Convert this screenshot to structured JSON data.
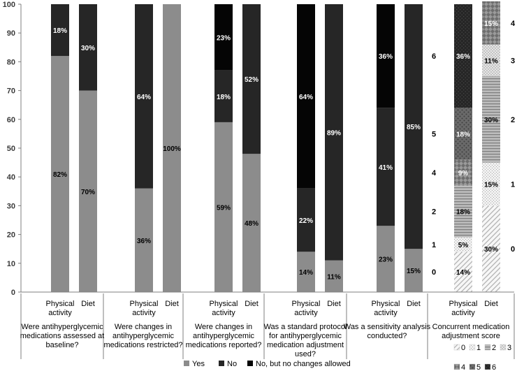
{
  "chart_data": {
    "type": "bar",
    "stacked": true,
    "ylim": [
      0,
      100
    ],
    "yticks": [
      0,
      10,
      20,
      30,
      40,
      50,
      60,
      70,
      80,
      90,
      100
    ],
    "grid": false,
    "legend_placement": "bottom",
    "colors": {
      "yes": "#8c8c8c",
      "no": "#262626",
      "no_changes": "#050505",
      "score_0": "#f2f2f2",
      "score_1": "#e6e6e6",
      "score_2": "#b3b3b3",
      "score_3": "#d9d9d9",
      "score_4": "#808080",
      "score_5": "#595959",
      "score_6": "#1a1a1a",
      "label_light": "#ffffff",
      "label_dark": "#000000"
    },
    "groups": [
      {
        "question": "Were antihyperglycemic medications assessed at baseline?",
        "bars": [
          {
            "category": "Physical activity",
            "segments": [
              {
                "series": "yes",
                "value": 82,
                "label": "82%"
              },
              {
                "series": "no",
                "value": 18,
                "label": "18%"
              }
            ]
          },
          {
            "category": "Diet",
            "segments": [
              {
                "series": "yes",
                "value": 70,
                "label": "70%"
              },
              {
                "series": "no",
                "value": 30,
                "label": "30%"
              }
            ]
          }
        ]
      },
      {
        "question": "Were changes in antihyperglycemic medications restricted?",
        "bars": [
          {
            "category": "Physical activity",
            "segments": [
              {
                "series": "yes",
                "value": 36,
                "label": "36%"
              },
              {
                "series": "no",
                "value": 64,
                "label": "64%"
              }
            ]
          },
          {
            "category": "Diet",
            "segments": [
              {
                "series": "yes",
                "value": 100,
                "label": "100%"
              }
            ]
          }
        ]
      },
      {
        "question": "Were changes in antihyperglycemic medications reported?",
        "bars": [
          {
            "category": "Physical activity",
            "segments": [
              {
                "series": "yes",
                "value": 59,
                "label": "59%"
              },
              {
                "series": "no",
                "value": 18,
                "label": "18%"
              },
              {
                "series": "no_changes",
                "value": 23,
                "label": "23%"
              }
            ]
          },
          {
            "category": "Diet",
            "segments": [
              {
                "series": "yes",
                "value": 48,
                "label": "48%"
              },
              {
                "series": "no",
                "value": 52,
                "label": "52%"
              }
            ]
          }
        ]
      },
      {
        "question": "Was a standard protocol for antihyperglycemic medication adjustment used?",
        "bars": [
          {
            "category": "Physical activity",
            "segments": [
              {
                "series": "yes",
                "value": 14,
                "label": "14%"
              },
              {
                "series": "no",
                "value": 22,
                "label": "22%"
              },
              {
                "series": "no_changes",
                "value": 64,
                "label": "64%"
              }
            ]
          },
          {
            "category": "Diet",
            "segments": [
              {
                "series": "yes",
                "value": 11,
                "label": "11%"
              },
              {
                "series": "no",
                "value": 89,
                "label": "89%"
              }
            ]
          }
        ]
      },
      {
        "question": "Was a sensitivity analysis conducted?",
        "bars": [
          {
            "category": "Physical activity",
            "segments": [
              {
                "series": "yes",
                "value": 23,
                "label": "23%"
              },
              {
                "series": "no",
                "value": 41,
                "label": "41%"
              },
              {
                "series": "no_changes",
                "value": 36,
                "label": "36%"
              }
            ]
          },
          {
            "category": "Diet",
            "segments": [
              {
                "series": "yes",
                "value": 15,
                "label": "15%"
              },
              {
                "series": "no",
                "value": 85,
                "label": "85%"
              }
            ]
          }
        ]
      },
      {
        "question": "Concurrent medication adjustment score",
        "bars": [
          {
            "category": "Physical activity",
            "segments": [
              {
                "series": "score_0",
                "value": 14,
                "label": "14%",
                "score": "0"
              },
              {
                "series": "score_1",
                "value": 5,
                "label": "5%",
                "score": "1"
              },
              {
                "series": "score_2",
                "value": 18,
                "label": "18%",
                "score": "2"
              },
              {
                "series": "score_4",
                "value": 9,
                "label": "9%",
                "score": "4"
              },
              {
                "series": "score_5",
                "value": 18,
                "label": "18%",
                "score": "5"
              },
              {
                "series": "score_6",
                "value": 36,
                "label": "36%",
                "score": "6"
              }
            ]
          },
          {
            "category": "Diet",
            "segments": [
              {
                "series": "score_0",
                "value": 30,
                "label": "30%",
                "score": "0"
              },
              {
                "series": "score_1",
                "value": 15,
                "label": "15%",
                "score": "1"
              },
              {
                "series": "score_2",
                "value": 30,
                "label": "30%",
                "score": "2"
              },
              {
                "series": "score_3",
                "value": 11,
                "label": "11%",
                "score": "3"
              },
              {
                "series": "score_4",
                "value": 15,
                "label": "15%",
                "score": "4"
              }
            ]
          }
        ]
      }
    ],
    "legend": [
      {
        "key": "yes",
        "label": "Yes"
      },
      {
        "key": "no",
        "label": "No"
      },
      {
        "key": "no_changes",
        "label": "No, but no changes allowed"
      }
    ],
    "score_legend": [
      {
        "key": "score_0",
        "label": "0"
      },
      {
        "key": "score_1",
        "label": "1"
      },
      {
        "key": "score_2",
        "label": "2"
      },
      {
        "key": "score_3",
        "label": "3"
      },
      {
        "key": "score_4",
        "label": "4"
      },
      {
        "key": "score_5",
        "label": "5"
      },
      {
        "key": "score_6",
        "label": "6"
      }
    ]
  }
}
